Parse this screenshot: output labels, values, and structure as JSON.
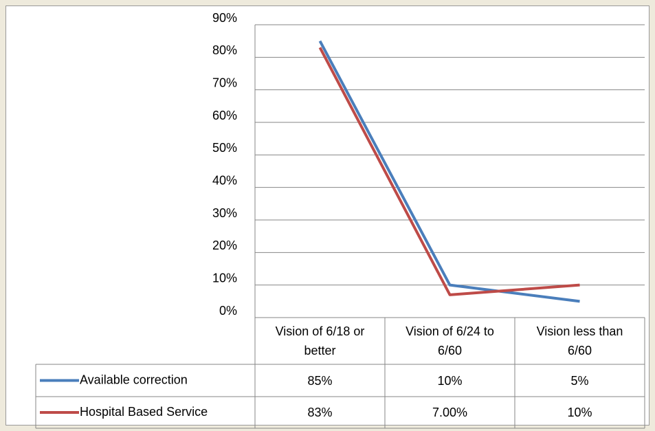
{
  "chart_data": {
    "type": "line",
    "categories": [
      "Vision of 6/18 or better",
      "Vision of 6/24 to 6/60",
      "Vision less than 6/60"
    ],
    "series": [
      {
        "name": "Available correction",
        "color": "#4a7ebb",
        "values": [
          85,
          10,
          5
        ],
        "value_labels": [
          "85%",
          "10%",
          "5%"
        ]
      },
      {
        "name": "Hospital Based Service",
        "color": "#be4b48",
        "values": [
          83,
          7,
          10
        ],
        "value_labels": [
          "83%",
          "7.00%",
          "10%"
        ]
      }
    ],
    "ylim": [
      0,
      90
    ],
    "yticks": [
      {
        "value": 0,
        "label": "0%"
      },
      {
        "value": 10,
        "label": "10%"
      },
      {
        "value": 20,
        "label": "20%"
      },
      {
        "value": 30,
        "label": "30%"
      },
      {
        "value": 40,
        "label": "40%"
      },
      {
        "value": 50,
        "label": "50%"
      },
      {
        "value": 60,
        "label": "60%"
      },
      {
        "value": 70,
        "label": "70%"
      },
      {
        "value": 80,
        "label": "80%"
      },
      {
        "value": 90,
        "label": "90%"
      }
    ],
    "grid": true,
    "data_table": true
  }
}
